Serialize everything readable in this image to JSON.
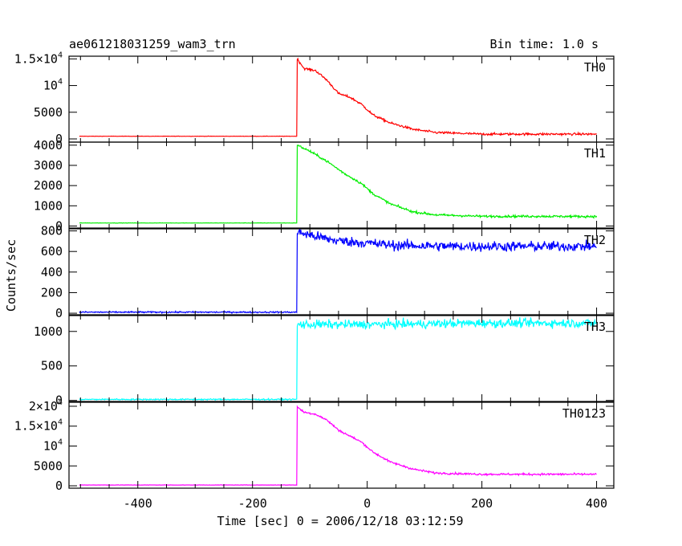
{
  "chart_data": {
    "type": "line",
    "title": "ae061218031259_wam3_trn",
    "subtitle": "Bin time: 1.0 s",
    "xlabel": "Time [sec] 0 = 2006/12/18 03:12:59",
    "ylabel": "Counts/sec",
    "xlim": [
      -520,
      430
    ],
    "x_ticks": [
      -400,
      -200,
      0,
      200,
      400
    ],
    "grid": false,
    "onset_time": -122,
    "panels": [
      {
        "name": "TH0",
        "color": "#ff0000",
        "ylim": [
          -600,
          15500
        ],
        "y_ticks": [
          0,
          5000,
          10000,
          15000
        ],
        "y_tick_labels": [
          "0",
          "5000",
          "10^4",
          "1.5×10^4"
        ],
        "pre_level": 500,
        "noise": 150,
        "profile": [
          [
            -122,
            15000
          ],
          [
            -110,
            13200
          ],
          [
            -90,
            12800
          ],
          [
            -70,
            11000
          ],
          [
            -50,
            8500
          ],
          [
            -30,
            7800
          ],
          [
            -10,
            6500
          ],
          [
            10,
            4500
          ],
          [
            40,
            3000
          ],
          [
            80,
            1800
          ],
          [
            120,
            1200
          ],
          [
            200,
            900
          ],
          [
            300,
            900
          ],
          [
            400,
            900
          ]
        ]
      },
      {
        "name": "TH1",
        "color": "#00ee00",
        "ylim": [
          -100,
          4150
        ],
        "y_ticks": [
          0,
          1000,
          2000,
          3000,
          4000
        ],
        "y_tick_labels": [
          "0",
          "1000",
          "2000",
          "3000",
          "4000"
        ],
        "pre_level": 150,
        "noise": 40,
        "profile": [
          [
            -122,
            4000
          ],
          [
            -100,
            3700
          ],
          [
            -70,
            3200
          ],
          [
            -40,
            2600
          ],
          [
            -10,
            2100
          ],
          [
            10,
            1600
          ],
          [
            40,
            1100
          ],
          [
            80,
            700
          ],
          [
            120,
            550
          ],
          [
            200,
            480
          ],
          [
            300,
            480
          ],
          [
            400,
            470
          ]
        ]
      },
      {
        "name": "TH2",
        "color": "#0000ff",
        "ylim": [
          -15,
          820
        ],
        "y_ticks": [
          0,
          200,
          400,
          600,
          800
        ],
        "y_tick_labels": [
          "0",
          "200",
          "400",
          "600",
          "800"
        ],
        "pre_level": 10,
        "noise": 35,
        "profile": [
          [
            -122,
            790
          ],
          [
            -100,
            760
          ],
          [
            -60,
            710
          ],
          [
            -20,
            690
          ],
          [
            50,
            660
          ],
          [
            150,
            650
          ],
          [
            300,
            650
          ],
          [
            400,
            650
          ]
        ]
      },
      {
        "name": "TH3",
        "color": "#00ffff",
        "ylim": [
          -15,
          1230
        ],
        "y_ticks": [
          0,
          500,
          1000
        ],
        "y_tick_labels": [
          "0",
          "500",
          "1000"
        ],
        "pre_level": 15,
        "noise": 45,
        "profile": [
          [
            -122,
            1100
          ],
          [
            0,
            1100
          ],
          [
            200,
            1120
          ],
          [
            400,
            1120
          ]
        ]
      },
      {
        "name": "TH0123",
        "color": "#ff00ff",
        "ylim": [
          -600,
          21000
        ],
        "y_ticks": [
          0,
          5000,
          10000,
          15000,
          20000
        ],
        "y_tick_labels": [
          "0",
          "5000",
          "10^4",
          "1.5×10^4",
          "2×10^4"
        ],
        "pre_level": 200,
        "noise": 180,
        "profile": [
          [
            -122,
            19800
          ],
          [
            -110,
            18500
          ],
          [
            -90,
            18000
          ],
          [
            -70,
            16500
          ],
          [
            -50,
            14000
          ],
          [
            -30,
            12500
          ],
          [
            -10,
            11000
          ],
          [
            10,
            8500
          ],
          [
            40,
            6000
          ],
          [
            80,
            4200
          ],
          [
            120,
            3200
          ],
          [
            200,
            2900
          ],
          [
            300,
            2900
          ],
          [
            400,
            2900
          ]
        ]
      }
    ]
  }
}
